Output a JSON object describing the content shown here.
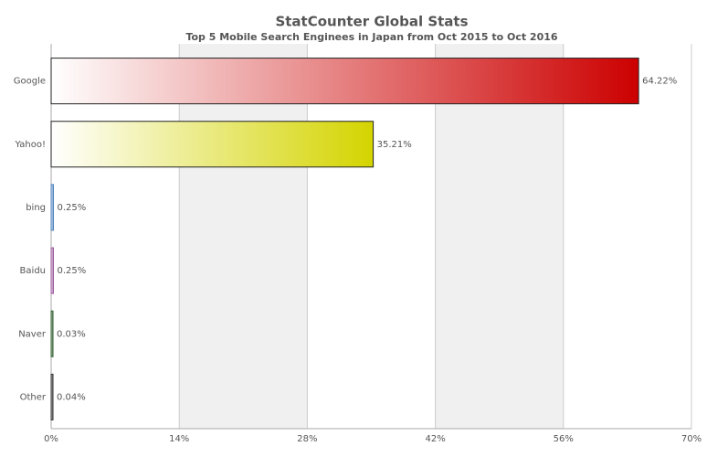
{
  "chart_data": {
    "type": "bar",
    "orientation": "horizontal",
    "title": "StatCounter Global Stats",
    "subtitle": "Top 5 Mobile Search Enginees in Japan from Oct 2015 to Oct 2016",
    "categories": [
      "Google",
      "Yahoo!",
      "bing",
      "Baidu",
      "Naver",
      "Other"
    ],
    "values": [
      64.22,
      35.21,
      0.25,
      0.25,
      0.03,
      0.04
    ],
    "value_labels": [
      "64.22%",
      "35.21%",
      "0.25%",
      "0.25%",
      "0.03%",
      "0.04%"
    ],
    "colors": [
      "#cc0000",
      "#d4d400",
      "#4f81bd",
      "#9b5a9b",
      "#2e5e2e",
      "#333333"
    ],
    "xlim": [
      0,
      70
    ],
    "xticks": [
      {
        "value": 0,
        "label": "0%"
      },
      {
        "value": 14,
        "label": "14%"
      },
      {
        "value": 28,
        "label": "28%"
      },
      {
        "value": 42,
        "label": "42%"
      },
      {
        "value": 56,
        "label": "56%"
      },
      {
        "value": 70,
        "label": "70%"
      }
    ],
    "grid": true
  }
}
